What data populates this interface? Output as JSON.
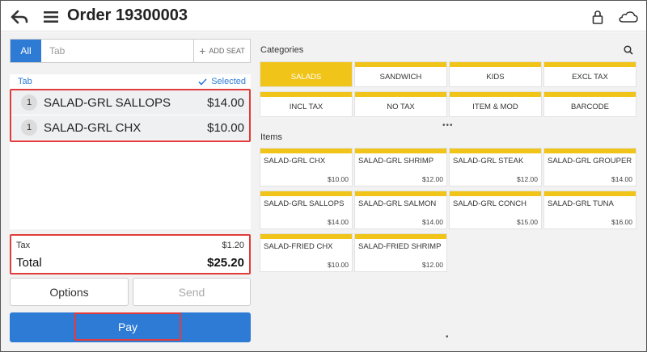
{
  "header": {
    "title": "Order 19300003",
    "back_icon": "back-arrow-icon",
    "menu_icon": "hamburger-menu-icon",
    "lock_icon": "lock-icon",
    "cloud_icon": "cloud-icon"
  },
  "tabbar": {
    "all_label": "All",
    "tab_placeholder": "Tab",
    "add_seat_label": "ADD SEAT"
  },
  "order": {
    "tab_label": "Tab",
    "selected_label": "Selected",
    "items": [
      {
        "qty": "1",
        "name": "SALAD-GRL SALLOPS",
        "price": "$14.00"
      },
      {
        "qty": "1",
        "name": "SALAD-GRL CHX",
        "price": "$10.00"
      }
    ],
    "tax_label": "Tax",
    "tax_value": "$1.20",
    "total_label": "Total",
    "total_value": "$25.20"
  },
  "actions": {
    "options_label": "Options",
    "send_label": "Send",
    "pay_label": "Pay"
  },
  "categories": {
    "label": "Categories",
    "items": [
      "SALADS",
      "SANDWICH",
      "KIDS",
      "EXCL TAX",
      "INCL TAX",
      "NO TAX",
      "ITEM & MOD",
      "BARCODE"
    ],
    "active": "SALADS"
  },
  "items_section": {
    "label": "Items",
    "items": [
      {
        "name": "SALAD-GRL CHX",
        "price": "$10.00"
      },
      {
        "name": "SALAD-GRL SHRIMP",
        "price": "$12.00"
      },
      {
        "name": "SALAD-GRL STEAK",
        "price": "$12.00"
      },
      {
        "name": "SALAD-GRL GROUPER",
        "price": "$14.00"
      },
      {
        "name": "SALAD-GRL SALLOPS",
        "price": "$14.00"
      },
      {
        "name": "SALAD-GRL SALMON",
        "price": "$14.00"
      },
      {
        "name": "SALAD-GRL CONCH",
        "price": "$15.00"
      },
      {
        "name": "SALAD-GRL TUNA",
        "price": "$16.00"
      },
      {
        "name": "SALAD-FRIED CHX",
        "price": "$10.00"
      },
      {
        "name": "SALAD-FRIED SHRIMP",
        "price": "$12.00"
      }
    ]
  },
  "colors": {
    "accent_blue": "#2e7bd6",
    "category_yellow": "#f0c419",
    "highlight_red": "#e23b3b"
  }
}
